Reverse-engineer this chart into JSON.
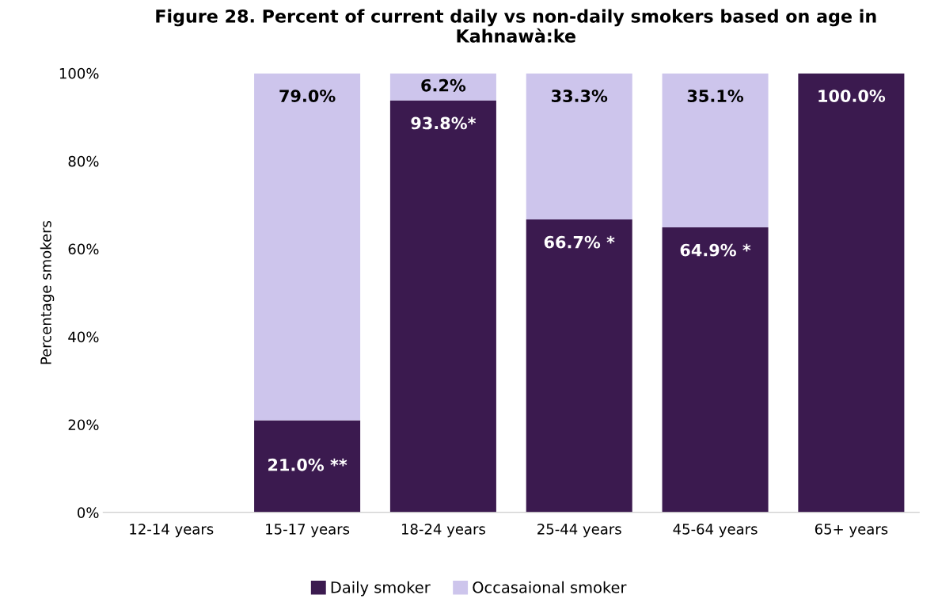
{
  "chart_data": {
    "type": "bar",
    "stacked": true,
    "title": "Figure 28. Percent of current daily vs non-daily smokers based on age in Kahnawà:ke",
    "ylabel": "Percentage smokers",
    "categories": [
      "12-14 years",
      "15-17 years",
      "18-24 years",
      "25-44 years",
      "45-64 years",
      "65+ years"
    ],
    "series": [
      {
        "name": "Daily smoker",
        "color": "#3b1a4f",
        "values": [
          null,
          21.0,
          93.8,
          66.7,
          64.9,
          100.0
        ],
        "value_labels": [
          null,
          "21.0% **",
          "93.8%*",
          "66.7% *",
          "64.9% *",
          "100.0%"
        ]
      },
      {
        "name": "Occasaional smoker",
        "color": "#cdc5ec",
        "values": [
          null,
          79.0,
          6.2,
          33.3,
          35.1,
          null
        ],
        "value_labels": [
          null,
          "79.0%",
          "6.2%",
          "33.3%",
          "35.1%",
          null
        ]
      }
    ],
    "ylim": [
      0,
      100
    ],
    "yticks": [
      {
        "value": 0,
        "label": "0%"
      },
      {
        "value": 20,
        "label": "20%"
      },
      {
        "value": 40,
        "label": "40%"
      },
      {
        "value": 60,
        "label": "60%"
      },
      {
        "value": 80,
        "label": "80%"
      },
      {
        "value": 100,
        "label": "100%"
      }
    ],
    "grid": false,
    "legend": "bottom"
  }
}
